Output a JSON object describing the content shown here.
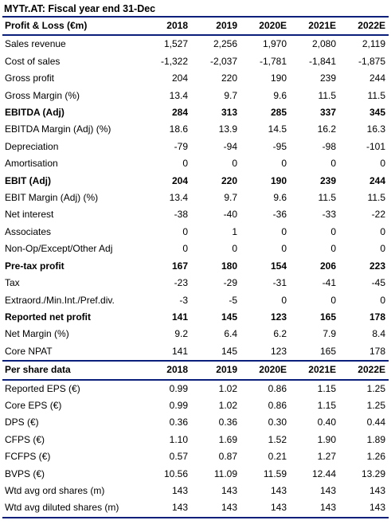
{
  "title": "MYTr.AT: Fiscal year end 31-Dec",
  "pl": {
    "header": {
      "label": "Profit & Loss (€m)",
      "years": [
        "2018",
        "2019",
        "2020E",
        "2021E",
        "2022E"
      ]
    },
    "rows": [
      {
        "label": "Sales revenue",
        "values": [
          "1,527",
          "2,256",
          "1,970",
          "2,080",
          "2,119"
        ]
      },
      {
        "label": "Cost of sales",
        "values": [
          "-1,322",
          "-2,037",
          "-1,781",
          "-1,841",
          "-1,875"
        ]
      },
      {
        "label": "Gross profit",
        "values": [
          "204",
          "220",
          "190",
          "239",
          "244"
        ]
      },
      {
        "label": "Gross Margin (%)",
        "values": [
          "13.4",
          "9.7",
          "9.6",
          "11.5",
          "11.5"
        ]
      },
      {
        "label": "EBITDA (Adj)",
        "values": [
          "284",
          "313",
          "285",
          "337",
          "345"
        ],
        "bold": true
      },
      {
        "label": "EBITDA Margin (Adj) (%)",
        "values": [
          "18.6",
          "13.9",
          "14.5",
          "16.2",
          "16.3"
        ]
      },
      {
        "label": "Depreciation",
        "values": [
          "-79",
          "-94",
          "-95",
          "-98",
          "-101"
        ]
      },
      {
        "label": "Amortisation",
        "values": [
          "0",
          "0",
          "0",
          "0",
          "0"
        ]
      },
      {
        "label": "EBIT (Adj)",
        "values": [
          "204",
          "220",
          "190",
          "239",
          "244"
        ],
        "bold": true
      },
      {
        "label": "EBIT Margin (Adj) (%)",
        "values": [
          "13.4",
          "9.7",
          "9.6",
          "11.5",
          "11.5"
        ]
      },
      {
        "label": "Net interest",
        "values": [
          "-38",
          "-40",
          "-36",
          "-33",
          "-22"
        ]
      },
      {
        "label": "Associates",
        "values": [
          "0",
          "1",
          "0",
          "0",
          "0"
        ]
      },
      {
        "label": "Non-Op/Except/Other Adj",
        "values": [
          "0",
          "0",
          "0",
          "0",
          "0"
        ]
      },
      {
        "label": "Pre-tax profit",
        "values": [
          "167",
          "180",
          "154",
          "206",
          "223"
        ],
        "bold": true
      },
      {
        "label": "Tax",
        "values": [
          "-23",
          "-29",
          "-31",
          "-41",
          "-45"
        ]
      },
      {
        "label": "Extraord./Min.Int./Pref.div.",
        "values": [
          "-3",
          "-5",
          "0",
          "0",
          "0"
        ]
      },
      {
        "label": "Reported net profit",
        "values": [
          "141",
          "145",
          "123",
          "165",
          "178"
        ],
        "bold": true
      },
      {
        "label": "Net Margin (%)",
        "values": [
          "9.2",
          "6.4",
          "6.2",
          "7.9",
          "8.4"
        ]
      },
      {
        "label": "Core NPAT",
        "values": [
          "141",
          "145",
          "123",
          "165",
          "178"
        ]
      }
    ]
  },
  "ps": {
    "header": {
      "label": "Per share data",
      "years": [
        "2018",
        "2019",
        "2020E",
        "2021E",
        "2022E"
      ]
    },
    "rows": [
      {
        "label": "Reported EPS (€)",
        "values": [
          "0.99",
          "1.02",
          "0.86",
          "1.15",
          "1.25"
        ]
      },
      {
        "label": "Core EPS (€)",
        "values": [
          "0.99",
          "1.02",
          "0.86",
          "1.15",
          "1.25"
        ]
      },
      {
        "label": "DPS (€)",
        "values": [
          "0.36",
          "0.36",
          "0.30",
          "0.40",
          "0.44"
        ]
      },
      {
        "label": "CFPS (€)",
        "values": [
          "1.10",
          "1.69",
          "1.52",
          "1.90",
          "1.89"
        ]
      },
      {
        "label": "FCFPS (€)",
        "values": [
          "0.57",
          "0.87",
          "0.21",
          "1.27",
          "1.26"
        ]
      },
      {
        "label": "BVPS (€)",
        "values": [
          "10.56",
          "11.09",
          "11.59",
          "12.44",
          "13.29"
        ]
      },
      {
        "label": "Wtd avg ord shares (m)",
        "values": [
          "143",
          "143",
          "143",
          "143",
          "143"
        ]
      },
      {
        "label": "Wtd avg diluted shares (m)",
        "values": [
          "143",
          "143",
          "143",
          "143",
          "143"
        ]
      }
    ]
  }
}
